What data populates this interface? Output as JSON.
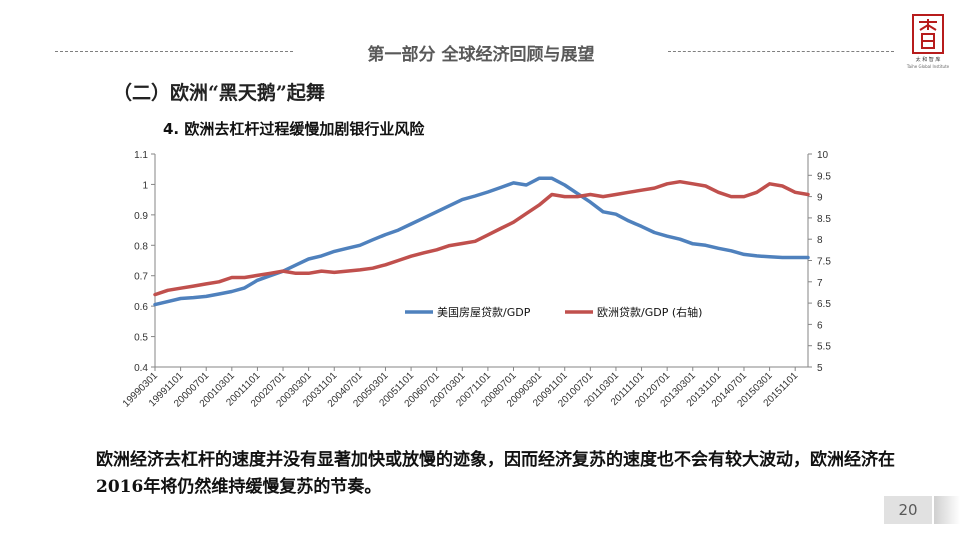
{
  "header": {
    "title": "第一部分  全球经济回顾与展望"
  },
  "logo": {
    "text": "太 和 智 库",
    "subtext": "Taihe Global Institute"
  },
  "section_title": "（二）欧洲“黑天鹅”起舞",
  "chart_title": "4. 欧洲去杠杆过程缓慢加剧银行业风险",
  "body_text": "欧洲经济去杠杆的速度并没有显著加快或放慢的迹象，因而经济复苏的速度也不会有较大波动，欧洲经济在2016年将仍然维持缓慢复苏的节奏。",
  "page_number": "20",
  "colors": {
    "us_series": "#4f81bd",
    "eu_series": "#c0504d",
    "header_text": "#595959",
    "logo_red": "#b71c1c"
  },
  "chart_data": {
    "type": "line",
    "x": [
      "19990301",
      "19990701",
      "19991101",
      "20000301",
      "20000701",
      "20001101",
      "20010301",
      "20010701",
      "20011101",
      "20020301",
      "20020701",
      "20021101",
      "20030301",
      "20030701",
      "20031101",
      "20040301",
      "20040701",
      "20041101",
      "20050301",
      "20050701",
      "20051101",
      "20060301",
      "20060701",
      "20061101",
      "20070301",
      "20070701",
      "20071101",
      "20080301",
      "20080701",
      "20081101",
      "20090301",
      "20090701",
      "20091101",
      "20100301",
      "20100701",
      "20101101",
      "20110301",
      "20110701",
      "20111101",
      "20120301",
      "20120701",
      "20121101",
      "20130301",
      "20130701",
      "20131101",
      "20140301",
      "20140701",
      "20141101",
      "20150301",
      "20150701",
      "20151101",
      "20160101"
    ],
    "x_tick_labels": [
      "19990301",
      "19991101",
      "20000701",
      "20010301",
      "20011101",
      "20020701",
      "20030301",
      "20031101",
      "20040701",
      "20050301",
      "20051101",
      "20060701",
      "20070301",
      "20071101",
      "20080701",
      "20090301",
      "20091101",
      "20100701",
      "20110301",
      "20111101",
      "20120701",
      "20130301",
      "20131101",
      "20140701",
      "20150301",
      "20151101"
    ],
    "series": [
      {
        "name": "美国房屋贷款/GDP",
        "axis": "left",
        "color": "#4f81bd",
        "values": [
          0.605,
          0.615,
          0.625,
          0.628,
          0.632,
          0.64,
          0.648,
          0.66,
          0.685,
          0.7,
          0.715,
          0.735,
          0.755,
          0.765,
          0.78,
          0.79,
          0.8,
          0.818,
          0.835,
          0.85,
          0.87,
          0.89,
          0.91,
          0.93,
          0.95,
          0.962,
          0.975,
          0.99,
          1.005,
          0.998,
          1.02,
          1.02,
          0.998,
          0.97,
          0.942,
          0.91,
          0.902,
          0.88,
          0.862,
          0.842,
          0.83,
          0.82,
          0.805,
          0.8,
          0.79,
          0.782,
          0.77,
          0.765,
          0.762,
          0.76,
          0.76,
          0.76
        ]
      },
      {
        "name": "欧洲贷款/GDP (右轴)",
        "axis": "right",
        "color": "#c0504d",
        "values": [
          6.7,
          6.8,
          6.85,
          6.9,
          6.95,
          7.0,
          7.1,
          7.1,
          7.15,
          7.2,
          7.25,
          7.2,
          7.2,
          7.25,
          7.22,
          7.25,
          7.28,
          7.32,
          7.4,
          7.5,
          7.6,
          7.68,
          7.75,
          7.85,
          7.9,
          7.95,
          8.1,
          8.25,
          8.4,
          8.6,
          8.8,
          9.05,
          9.0,
          9.0,
          9.05,
          9.0,
          9.05,
          9.1,
          9.15,
          9.2,
          9.3,
          9.35,
          9.3,
          9.25,
          9.1,
          9.0,
          9.0,
          9.1,
          9.3,
          9.25,
          9.1,
          9.05
        ]
      }
    ],
    "y_left": {
      "min": 0.4,
      "max": 1.1,
      "ticks": [
        "0.4",
        "0.5",
        "0.6",
        "0.7",
        "0.8",
        "0.9",
        "1",
        "1.1"
      ]
    },
    "y_right": {
      "min": 5,
      "max": 10,
      "ticks": [
        "5",
        "5.5",
        "6",
        "6.5",
        "7",
        "7.5",
        "8",
        "8.5",
        "9",
        "9.5",
        "10"
      ]
    },
    "grid": false,
    "legend_placement": "inside-center-right"
  }
}
